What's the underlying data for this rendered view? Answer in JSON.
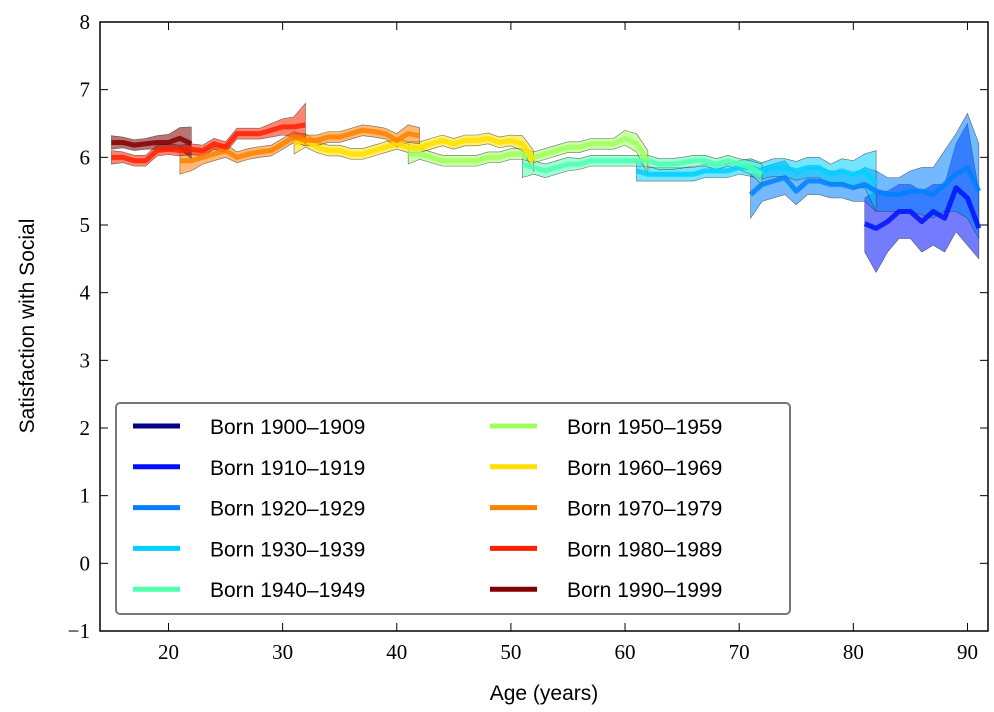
{
  "chart_data": {
    "type": "line",
    "xlabel": "Age (years)",
    "ylabel": "Satisfaction with Social",
    "xlim": [
      14,
      91.8
    ],
    "ylim": [
      -1,
      8
    ],
    "xticks": [
      20,
      30,
      40,
      50,
      60,
      70,
      80,
      90
    ],
    "yticks": [
      {
        "value": -1,
        "label": "−1"
      },
      0,
      1,
      2,
      3,
      4,
      5,
      6,
      7,
      8
    ],
    "legend": "lower left",
    "series": [
      {
        "name": "Born 1900–1909",
        "color": "#000080",
        "x": [],
        "values": [],
        "lower": [],
        "upper": []
      },
      {
        "name": "Born 1910–1919",
        "color": "#0010ff",
        "x": [
          81,
          82,
          83,
          84,
          85,
          86,
          87,
          88,
          89,
          90,
          91
        ],
        "values": [
          5.02,
          4.95,
          5.05,
          5.2,
          5.2,
          5.05,
          5.2,
          5.1,
          5.55,
          5.4,
          4.95
        ],
        "lower": [
          4.6,
          4.3,
          4.6,
          4.8,
          4.8,
          4.6,
          4.7,
          4.6,
          4.9,
          4.7,
          4.5
        ],
        "upper": [
          5.4,
          5.5,
          5.5,
          5.6,
          5.6,
          5.5,
          5.6,
          5.6,
          6.2,
          6.5,
          5.5
        ]
      },
      {
        "name": "Born 1920–1929",
        "color": "#0080ff",
        "x": [
          71,
          72,
          73,
          74,
          75,
          76,
          77,
          78,
          79,
          80,
          81,
          82,
          83,
          84,
          85,
          86,
          87,
          88,
          89,
          90,
          91
        ],
        "values": [
          5.45,
          5.6,
          5.65,
          5.7,
          5.5,
          5.65,
          5.65,
          5.6,
          5.6,
          5.55,
          5.6,
          5.5,
          5.45,
          5.45,
          5.5,
          5.5,
          5.45,
          5.6,
          5.75,
          5.85,
          5.5
        ],
        "lower": [
          5.1,
          5.35,
          5.4,
          5.45,
          5.3,
          5.45,
          5.45,
          5.4,
          5.4,
          5.35,
          5.35,
          5.2,
          5.2,
          5.2,
          5.2,
          5.15,
          5.1,
          5.2,
          5.2,
          5.1,
          4.8
        ],
        "upper": [
          5.75,
          5.85,
          5.9,
          5.95,
          5.75,
          5.85,
          5.85,
          5.8,
          5.8,
          5.75,
          5.85,
          5.8,
          5.7,
          5.7,
          5.8,
          5.85,
          5.85,
          6.1,
          6.35,
          6.65,
          6.2
        ]
      },
      {
        "name": "Born 1930–1939",
        "color": "#00d0ff",
        "x": [
          61,
          62,
          63,
          64,
          65,
          66,
          67,
          68,
          69,
          70,
          71,
          72,
          73,
          74,
          75,
          76,
          77,
          78,
          79,
          80,
          81,
          82
        ],
        "values": [
          5.8,
          5.75,
          5.75,
          5.75,
          5.75,
          5.75,
          5.8,
          5.8,
          5.8,
          5.85,
          5.85,
          5.8,
          5.85,
          5.85,
          5.8,
          5.85,
          5.85,
          5.75,
          5.8,
          5.75,
          5.8,
          5.6
        ],
        "lower": [
          5.65,
          5.65,
          5.65,
          5.65,
          5.65,
          5.65,
          5.7,
          5.7,
          5.7,
          5.75,
          5.72,
          5.68,
          5.72,
          5.72,
          5.66,
          5.7,
          5.7,
          5.6,
          5.62,
          5.55,
          5.55,
          5.2
        ],
        "upper": [
          5.95,
          5.85,
          5.85,
          5.85,
          5.85,
          5.85,
          5.9,
          5.9,
          5.9,
          5.95,
          5.98,
          5.92,
          5.98,
          5.98,
          5.94,
          6.0,
          6.0,
          5.9,
          5.98,
          5.95,
          6.05,
          6.1
        ]
      },
      {
        "name": "Born 1940–1949",
        "color": "#50ffb0",
        "x": [
          51,
          52,
          53,
          54,
          55,
          56,
          57,
          58,
          59,
          60,
          61,
          62,
          63,
          64,
          65,
          66,
          67,
          68,
          69,
          70,
          71,
          72
        ],
        "values": [
          5.9,
          5.85,
          5.8,
          5.85,
          5.9,
          5.9,
          5.95,
          5.95,
          5.95,
          5.95,
          5.95,
          5.95,
          5.9,
          5.9,
          5.92,
          5.95,
          5.95,
          5.9,
          5.95,
          5.9,
          5.85,
          5.75
        ],
        "lower": [
          5.7,
          5.75,
          5.7,
          5.75,
          5.8,
          5.82,
          5.87,
          5.87,
          5.87,
          5.87,
          5.87,
          5.87,
          5.82,
          5.82,
          5.84,
          5.87,
          5.87,
          5.82,
          5.87,
          5.82,
          5.75,
          5.6
        ],
        "upper": [
          6.05,
          5.95,
          5.9,
          5.95,
          6.0,
          5.98,
          6.03,
          6.03,
          6.03,
          6.03,
          6.03,
          6.03,
          5.98,
          5.98,
          6.0,
          6.03,
          6.03,
          5.98,
          6.03,
          5.98,
          5.95,
          5.9
        ]
      },
      {
        "name": "Born 1950–1959",
        "color": "#a0ff60",
        "x": [
          41,
          42,
          43,
          44,
          45,
          46,
          47,
          48,
          49,
          50,
          51,
          52,
          53,
          54,
          55,
          56,
          57,
          58,
          59,
          60,
          61,
          62
        ],
        "values": [
          6.05,
          6.05,
          6.0,
          5.95,
          5.95,
          5.95,
          5.95,
          6.0,
          6.0,
          6.05,
          6.05,
          6.0,
          6.05,
          6.1,
          6.15,
          6.15,
          6.2,
          6.2,
          6.2,
          6.28,
          6.2,
          5.95
        ],
        "lower": [
          5.9,
          5.97,
          5.92,
          5.87,
          5.87,
          5.87,
          5.87,
          5.92,
          5.92,
          5.97,
          5.97,
          5.92,
          5.97,
          6.02,
          6.07,
          6.07,
          6.12,
          6.12,
          6.12,
          6.18,
          6.08,
          5.75
        ],
        "upper": [
          6.2,
          6.13,
          6.08,
          6.03,
          6.03,
          6.03,
          6.03,
          6.08,
          6.08,
          6.13,
          6.13,
          6.08,
          6.13,
          6.18,
          6.23,
          6.23,
          6.28,
          6.28,
          6.28,
          6.4,
          6.35,
          6.1
        ]
      },
      {
        "name": "Born 1960–1969",
        "color": "#ffe000",
        "x": [
          31,
          32,
          33,
          34,
          35,
          36,
          37,
          38,
          39,
          40,
          41,
          42,
          43,
          44,
          45,
          46,
          47,
          48,
          49,
          50,
          51,
          52
        ],
        "values": [
          6.2,
          6.25,
          6.15,
          6.1,
          6.1,
          6.05,
          6.05,
          6.1,
          6.15,
          6.2,
          6.15,
          6.15,
          6.2,
          6.25,
          6.2,
          6.25,
          6.25,
          6.28,
          6.22,
          6.25,
          6.2,
          5.95
        ],
        "lower": [
          6.05,
          6.15,
          6.07,
          6.02,
          6.02,
          5.97,
          5.97,
          6.02,
          6.07,
          6.12,
          6.07,
          6.07,
          6.12,
          6.17,
          6.12,
          6.17,
          6.17,
          6.2,
          6.14,
          6.17,
          6.1,
          5.8
        ],
        "upper": [
          6.35,
          6.35,
          6.23,
          6.18,
          6.18,
          6.13,
          6.13,
          6.18,
          6.23,
          6.28,
          6.23,
          6.23,
          6.28,
          6.33,
          6.28,
          6.33,
          6.33,
          6.36,
          6.3,
          6.33,
          6.32,
          6.1
        ]
      },
      {
        "name": "Born 1970–1979",
        "color": "#ff8000",
        "x": [
          21,
          22,
          23,
          24,
          25,
          26,
          27,
          28,
          29,
          30,
          31,
          32,
          33,
          34,
          35,
          36,
          37,
          38,
          39,
          40,
          41,
          42
        ],
        "values": [
          5.95,
          5.95,
          6.0,
          6.05,
          6.1,
          6.0,
          6.05,
          6.08,
          6.1,
          6.2,
          6.3,
          6.25,
          6.25,
          6.3,
          6.3,
          6.35,
          6.4,
          6.38,
          6.35,
          6.25,
          6.35,
          6.32
        ],
        "lower": [
          5.75,
          5.8,
          5.9,
          5.95,
          6.0,
          5.92,
          5.97,
          6.0,
          6.02,
          6.12,
          6.22,
          6.17,
          6.17,
          6.22,
          6.22,
          6.27,
          6.32,
          6.3,
          6.27,
          6.15,
          6.22,
          6.2
        ],
        "upper": [
          6.15,
          6.1,
          6.1,
          6.15,
          6.2,
          6.08,
          6.13,
          6.16,
          6.18,
          6.28,
          6.38,
          6.33,
          6.33,
          6.38,
          6.38,
          6.43,
          6.48,
          6.46,
          6.43,
          6.35,
          6.48,
          6.44
        ]
      },
      {
        "name": "Born 1980–1989",
        "color": "#ff2000",
        "x": [
          15,
          16,
          17,
          18,
          19,
          20,
          21,
          22,
          23,
          24,
          25,
          26,
          27,
          28,
          29,
          30,
          31,
          32
        ],
        "values": [
          6.0,
          6.0,
          5.95,
          5.95,
          6.1,
          6.12,
          6.1,
          6.12,
          6.1,
          6.2,
          6.15,
          6.35,
          6.35,
          6.35,
          6.4,
          6.45,
          6.45,
          6.48
        ],
        "lower": [
          5.9,
          5.92,
          5.87,
          5.87,
          6.02,
          6.04,
          6.02,
          6.04,
          6.02,
          6.12,
          6.07,
          6.27,
          6.27,
          6.27,
          6.3,
          6.33,
          6.3,
          6.2
        ],
        "upper": [
          6.1,
          6.08,
          6.03,
          6.03,
          6.18,
          6.2,
          6.18,
          6.2,
          6.18,
          6.28,
          6.23,
          6.43,
          6.43,
          6.43,
          6.5,
          6.57,
          6.6,
          6.8
        ]
      },
      {
        "name": "Born 1990–1999",
        "color": "#800000",
        "x": [
          15,
          16,
          17,
          18,
          19,
          20,
          21,
          22
        ],
        "values": [
          6.22,
          6.22,
          6.18,
          6.2,
          6.22,
          6.22,
          6.28,
          6.2
        ],
        "lower": [
          6.12,
          6.14,
          6.1,
          6.12,
          6.12,
          6.1,
          6.12,
          5.98
        ],
        "upper": [
          6.32,
          6.3,
          6.26,
          6.28,
          6.32,
          6.34,
          6.44,
          6.45
        ]
      }
    ]
  }
}
